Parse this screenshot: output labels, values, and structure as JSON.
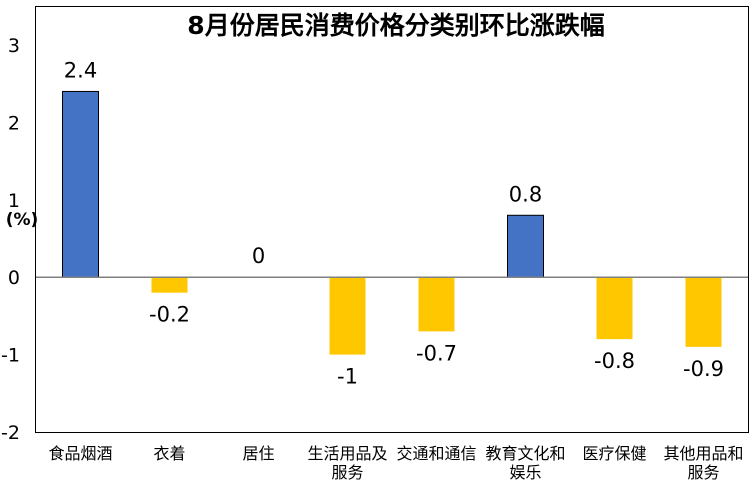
{
  "chart_data": {
    "type": "bar",
    "title": "8月份居民消费价格分类别环比涨跌幅",
    "ylabel": "(%)",
    "ylim": [
      -2,
      3
    ],
    "yticks": [
      -2,
      -1,
      0,
      1,
      2,
      3
    ],
    "grid": false,
    "categories": [
      [
        "食品烟酒"
      ],
      [
        "衣着"
      ],
      [
        "居住"
      ],
      [
        "生活用品及",
        "服务"
      ],
      [
        "交通和通信"
      ],
      [
        "教育文化和",
        "娱乐"
      ],
      [
        "医疗保健"
      ],
      [
        "其他用品和",
        "服务"
      ]
    ],
    "values": [
      2.4,
      -0.2,
      0,
      -1,
      -0.7,
      0.8,
      -0.8,
      -0.9
    ],
    "data_labels": [
      "2.4",
      "-0.2",
      "0",
      "-1",
      "-0.7",
      "0.8",
      "-0.8",
      "-0.9"
    ],
    "colors": {
      "positive": "#4472C4",
      "negative": "#FFC700",
      "bar_border": "#000000",
      "axis": "#000000",
      "zero_line": "#808080"
    }
  }
}
